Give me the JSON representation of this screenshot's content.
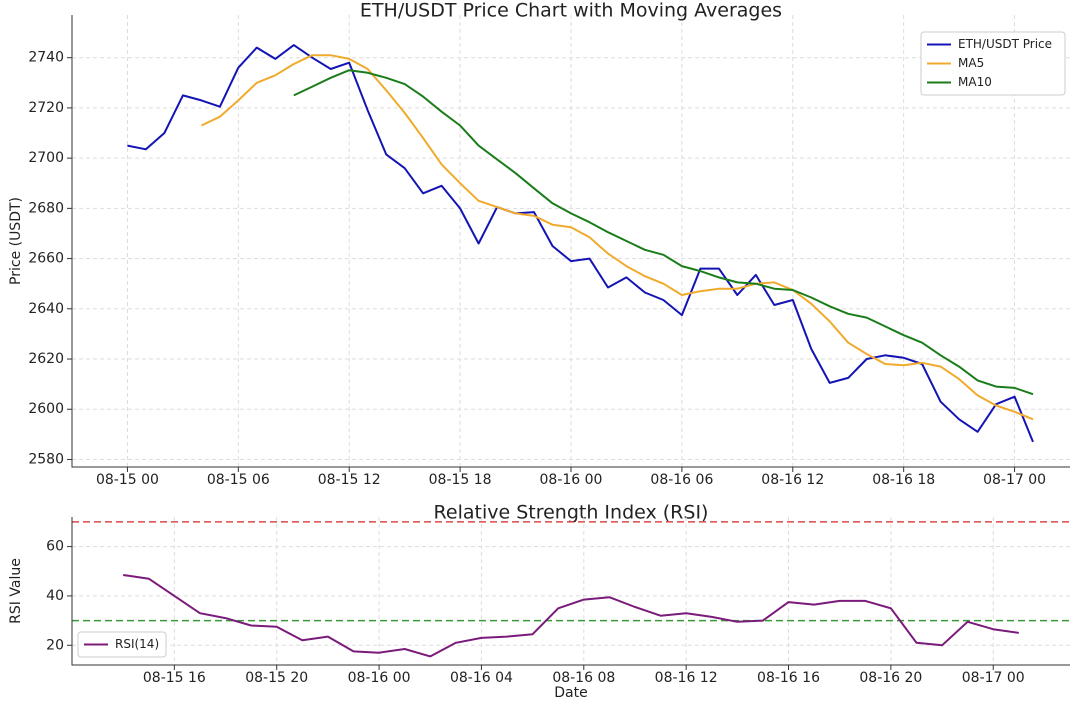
{
  "chart_data": [
    {
      "type": "line",
      "title": "ETH/USDT Price Chart with Moving Averages",
      "ylabel": "Price (USDT)",
      "x": [
        "08-15 00",
        "08-15 01",
        "08-15 02",
        "08-15 03",
        "08-15 04",
        "08-15 05",
        "08-15 06",
        "08-15 07",
        "08-15 08",
        "08-15 09",
        "08-15 10",
        "08-15 11",
        "08-15 12",
        "08-15 13",
        "08-15 14",
        "08-15 15",
        "08-15 16",
        "08-15 17",
        "08-15 18",
        "08-15 19",
        "08-15 20",
        "08-15 21",
        "08-15 22",
        "08-15 23",
        "08-16 00",
        "08-16 01",
        "08-16 02",
        "08-16 03",
        "08-16 04",
        "08-16 05",
        "08-16 06",
        "08-16 07",
        "08-16 08",
        "08-16 09",
        "08-16 10",
        "08-16 11",
        "08-16 12",
        "08-16 13",
        "08-16 14",
        "08-16 15",
        "08-16 16",
        "08-16 17",
        "08-16 18",
        "08-16 19",
        "08-16 20",
        "08-16 21",
        "08-16 22",
        "08-16 23",
        "08-17 00",
        "08-17 01"
      ],
      "series": [
        {
          "name": "ETH/USDT Price",
          "color": "#1414b4",
          "values": [
            2705,
            2703.5,
            2710,
            2725,
            2723,
            2720.5,
            2736,
            2744,
            2739.5,
            2745,
            2740,
            2735.5,
            2738,
            2719,
            2701.5,
            2696,
            2686,
            2689,
            2680,
            2666,
            2680.5,
            2678,
            2678.5,
            2665,
            2659,
            2660,
            2648.5,
            2652.5,
            2646.5,
            2643.5,
            2637.5,
            2656,
            2656,
            2645.5,
            2653.5,
            2641.5,
            2643.5,
            2624,
            2610.5,
            2612.5,
            2620,
            2621.5,
            2620.5,
            2618,
            2603,
            2596,
            2591,
            2602,
            2605,
            2587
          ]
        },
        {
          "name": "MA5",
          "color": "#f0aa2c",
          "values": [
            null,
            null,
            null,
            null,
            2713,
            2716.5,
            2723,
            2730,
            2733,
            2737.5,
            2741,
            2741,
            2739.5,
            2735.5,
            2727,
            2718,
            2708,
            2697.5,
            2690,
            2683,
            2680.5,
            2678,
            2677,
            2673.5,
            2672.5,
            2668.5,
            2662,
            2657,
            2653,
            2650,
            2645.5,
            2647,
            2648,
            2648,
            2650,
            2650.5,
            2647.5,
            2642,
            2635,
            2626.5,
            2622,
            2618,
            2617.5,
            2618.5,
            2617,
            2612,
            2605.5,
            2601.5,
            2599,
            2596
          ]
        },
        {
          "name": "MA10",
          "color": "#1a7d1a",
          "values": [
            null,
            null,
            null,
            null,
            null,
            null,
            null,
            null,
            null,
            2725,
            2728.5,
            2732,
            2735,
            2734,
            2732,
            2729.5,
            2724.5,
            2718.5,
            2713,
            2705,
            2699.5,
            2694,
            2688,
            2682,
            2678,
            2674.5,
            2670.5,
            2667,
            2663.5,
            2661.5,
            2657,
            2655,
            2652.5,
            2650.5,
            2650,
            2648,
            2647.5,
            2644.5,
            2641,
            2638,
            2636.5,
            2633,
            2629.5,
            2626.5,
            2621.5,
            2617,
            2611.5,
            2609,
            2608.5,
            2606
          ]
        }
      ],
      "xlim": [
        "08-14 21",
        "08-17 03"
      ],
      "xticks": [
        "08-15 00",
        "08-15 06",
        "08-15 12",
        "08-15 18",
        "08-16 00",
        "08-16 06",
        "08-16 12",
        "08-16 18",
        "08-17 00"
      ],
      "ylim": [
        2577,
        2757
      ],
      "yticks": [
        2580,
        2600,
        2620,
        2640,
        2660,
        2680,
        2700,
        2720,
        2740
      ],
      "grid": true,
      "legend": "upper right"
    },
    {
      "type": "line",
      "title": "Relative Strength Index (RSI)",
      "ylabel": "RSI Value",
      "xlabel": "Date",
      "x": [
        "08-15 14",
        "08-15 15",
        "08-15 16",
        "08-15 17",
        "08-15 18",
        "08-15 19",
        "08-15 20",
        "08-15 21",
        "08-15 22",
        "08-15 23",
        "08-16 00",
        "08-16 01",
        "08-16 02",
        "08-16 03",
        "08-16 04",
        "08-16 05",
        "08-16 06",
        "08-16 07",
        "08-16 08",
        "08-16 09",
        "08-16 10",
        "08-16 11",
        "08-16 12",
        "08-16 13",
        "08-16 14",
        "08-16 15",
        "08-16 16",
        "08-16 17",
        "08-16 18",
        "08-16 19",
        "08-16 20",
        "08-16 21",
        "08-16 22",
        "08-16 23",
        "08-17 00",
        "08-17 01"
      ],
      "series": [
        {
          "name": "RSI(14)",
          "color": "#7a1a7a",
          "values": [
            48.5,
            47,
            40,
            33,
            31,
            28,
            27.5,
            22,
            23.5,
            17.5,
            17,
            18.5,
            15.5,
            21,
            23,
            23.5,
            24.5,
            35,
            38.5,
            39.5,
            35.5,
            32,
            33,
            31.5,
            29.5,
            30,
            37.5,
            36.5,
            38,
            38,
            35,
            21,
            20,
            29.5,
            26.5,
            25
          ]
        }
      ],
      "hlines": [
        {
          "value": 70,
          "color": "#d94a4a"
        },
        {
          "value": 30,
          "color": "#3a9a3a"
        }
      ],
      "xlim": [
        "08-15 12",
        "08-17 03"
      ],
      "xticks": [
        "08-15 16",
        "08-15 20",
        "08-16 00",
        "08-16 04",
        "08-16 08",
        "08-16 12",
        "08-16 16",
        "08-16 20",
        "08-17 00"
      ],
      "ylim": [
        12,
        72
      ],
      "yticks": [
        20,
        40,
        60
      ],
      "grid": true,
      "legend": "lower left"
    }
  ]
}
